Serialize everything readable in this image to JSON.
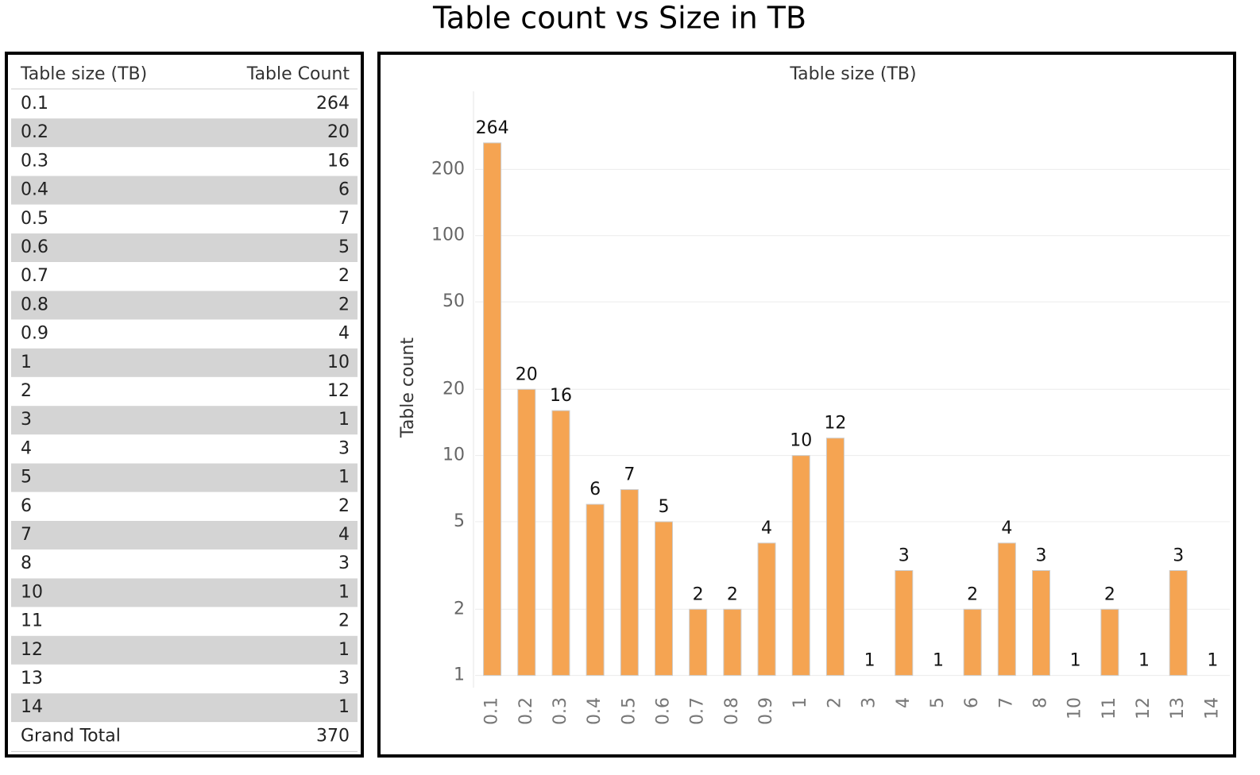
{
  "title": "Table count vs Size in TB",
  "table": {
    "headers": [
      "Table size (TB)",
      "Table Count"
    ],
    "total_label": "Grand Total",
    "total": 370
  },
  "chart_data": {
    "type": "bar",
    "title": "Table size (TB)",
    "y_label": "Table count",
    "categories": [
      "0.1",
      "0.2",
      "0.3",
      "0.4",
      "0.5",
      "0.6",
      "0.7",
      "0.8",
      "0.9",
      "1",
      "2",
      "3",
      "4",
      "5",
      "6",
      "7",
      "8",
      "10",
      "11",
      "12",
      "13",
      "14"
    ],
    "values": [
      264,
      20,
      16,
      6,
      7,
      5,
      2,
      2,
      4,
      10,
      12,
      1,
      3,
      1,
      2,
      4,
      3,
      1,
      2,
      1,
      3,
      1
    ],
    "color": "#f5a452",
    "log": true,
    "ylim": [
      0.88,
      453
    ],
    "yticks": [
      1,
      2,
      5,
      10,
      20,
      50,
      100,
      200
    ],
    "grid": true
  }
}
